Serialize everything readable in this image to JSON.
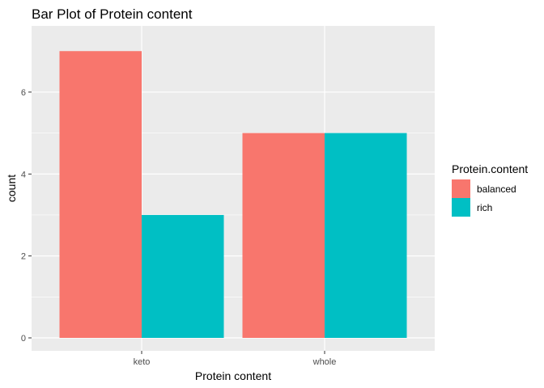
{
  "chart_data": {
    "type": "bar",
    "title": "Bar Plot of Protein content",
    "xlabel": "Protein content",
    "ylabel": "count",
    "categories": [
      "keto",
      "whole"
    ],
    "series": [
      {
        "name": "balanced",
        "values": [
          7,
          5
        ],
        "color": "#F8766D"
      },
      {
        "name": "rich",
        "values": [
          3,
          5
        ],
        "color": "#00BFC4"
      }
    ],
    "ylim": [
      0,
      7.35
    ],
    "yticks": [
      0,
      2,
      4,
      6
    ],
    "grid": true,
    "legend": {
      "title": "Protein.content",
      "position": "right"
    },
    "panel_background": "#EBEBEB"
  }
}
